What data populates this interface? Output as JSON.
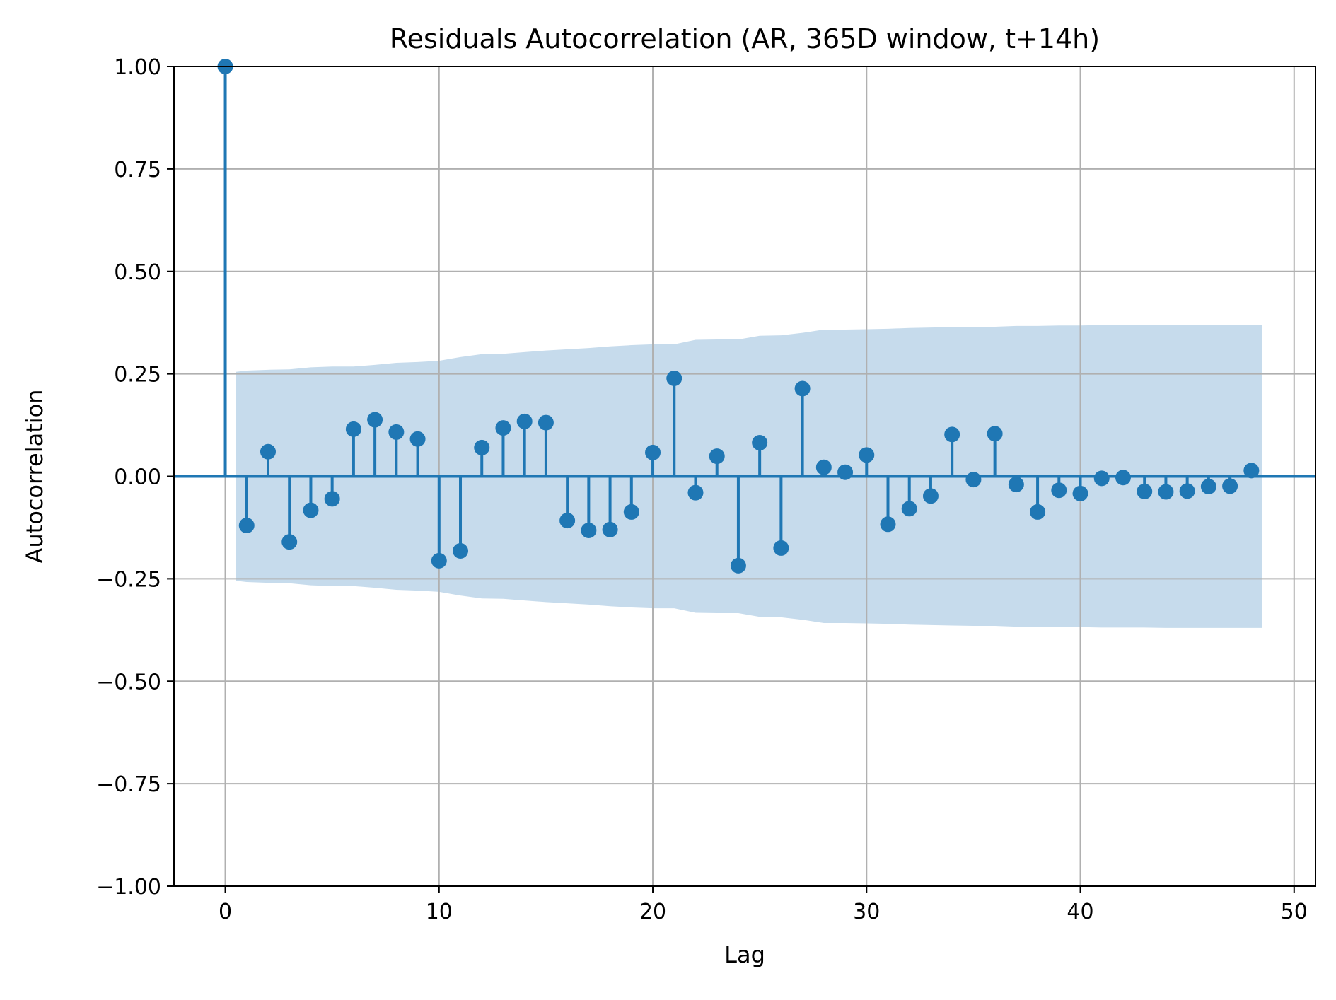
{
  "chart_data": {
    "type": "stem",
    "title": "Residuals Autocorrelation (AR, 365D window, t+14h)",
    "xlabel": "Lag",
    "ylabel": "Autocorrelation",
    "xlim": [
      -2.4,
      51
    ],
    "ylim": [
      -1.0,
      1.0
    ],
    "xticks": [
      0,
      10,
      20,
      30,
      40,
      50
    ],
    "xtick_labels": [
      "0",
      "10",
      "20",
      "30",
      "40",
      "50"
    ],
    "yticks": [
      1.0,
      0.75,
      0.5,
      0.25,
      0.0,
      -0.25,
      -0.5,
      -0.75,
      -1.0
    ],
    "ytick_labels": [
      "1.00",
      "0.75",
      "0.50",
      "0.25",
      "0.00",
      "−0.25",
      "−0.50",
      "−0.75",
      "−1.00"
    ],
    "grid": true,
    "colors": {
      "stem": "#1f77b4",
      "confidence_band": "#c6dbec",
      "grid": "#b0b0b0"
    },
    "series": [
      {
        "lags": [
          0,
          1,
          2,
          3,
          4,
          5,
          6,
          7,
          8,
          9,
          10,
          11,
          12,
          13,
          14,
          15,
          16,
          17,
          18,
          19,
          20,
          21,
          22,
          23,
          24,
          25,
          26,
          27,
          28,
          29,
          30,
          31,
          32,
          33,
          34,
          35,
          36,
          37,
          38,
          39,
          40,
          41,
          42,
          43,
          44,
          45,
          46,
          47,
          48
        ],
        "values": [
          1.0,
          -0.12,
          0.06,
          -0.16,
          -0.083,
          -0.055,
          0.115,
          0.138,
          0.108,
          0.091,
          -0.206,
          -0.182,
          0.07,
          0.118,
          0.134,
          0.131,
          -0.108,
          -0.132,
          -0.13,
          -0.087,
          0.058,
          0.239,
          -0.04,
          0.049,
          -0.218,
          0.082,
          -0.175,
          0.214,
          0.022,
          0.01,
          0.052,
          -0.117,
          -0.079,
          -0.048,
          0.102,
          -0.008,
          0.104,
          -0.02,
          -0.087,
          -0.034,
          -0.042,
          -0.005,
          -0.003,
          -0.037,
          -0.038,
          -0.036,
          -0.025,
          -0.024,
          0.014
        ]
      }
    ],
    "confidence_band": {
      "lags": [
        0.5,
        1,
        2,
        3,
        4,
        5,
        6,
        7,
        8,
        9,
        10,
        11,
        12,
        13,
        14,
        15,
        16,
        17,
        18,
        19,
        20,
        21,
        22,
        23,
        24,
        25,
        26,
        27,
        28,
        29,
        30,
        31,
        32,
        33,
        34,
        35,
        36,
        37,
        38,
        39,
        40,
        41,
        42,
        43,
        44,
        45,
        46,
        47,
        48,
        48.5
      ],
      "upper": [
        0.255,
        0.258,
        0.26,
        0.261,
        0.266,
        0.268,
        0.268,
        0.272,
        0.277,
        0.279,
        0.282,
        0.291,
        0.298,
        0.299,
        0.303,
        0.307,
        0.31,
        0.313,
        0.317,
        0.32,
        0.322,
        0.322,
        0.333,
        0.334,
        0.334,
        0.343,
        0.344,
        0.35,
        0.358,
        0.358,
        0.359,
        0.36,
        0.362,
        0.363,
        0.364,
        0.365,
        0.365,
        0.367,
        0.367,
        0.368,
        0.368,
        0.369,
        0.369,
        0.369,
        0.37,
        0.37,
        0.37,
        0.37,
        0.37,
        0.37
      ]
    }
  }
}
